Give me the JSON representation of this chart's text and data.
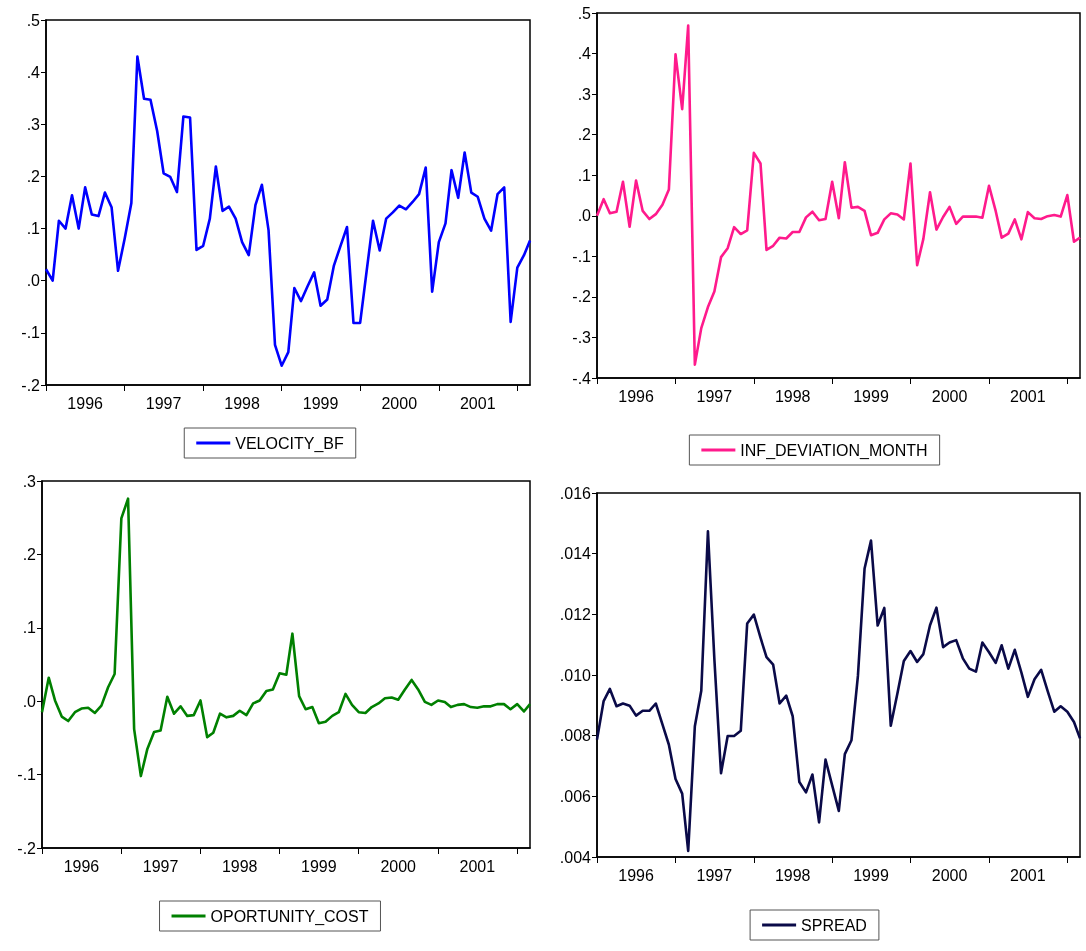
{
  "chart_data": [
    {
      "type": "line",
      "marker": "none",
      "legend": "bottom",
      "xlim": [
        "1996-01",
        "2002-03"
      ],
      "xticks": [
        {
          "value": "1996-01",
          "label": null
        },
        {
          "value": "1996-07",
          "label": "1996"
        },
        {
          "value": "1997-01",
          "label": null
        },
        {
          "value": "1997-07",
          "label": "1997"
        },
        {
          "value": "1998-01",
          "label": null
        },
        {
          "value": "1998-07",
          "label": "1998"
        },
        {
          "value": "1999-01",
          "label": null
        },
        {
          "value": "1999-07",
          "label": "1999"
        },
        {
          "value": "2000-01",
          "label": null
        },
        {
          "value": "2000-07",
          "label": "2000"
        },
        {
          "value": "2001-01",
          "label": null
        },
        {
          "value": "2001-07",
          "label": "2001"
        },
        {
          "value": "2002-01",
          "label": null
        }
      ],
      "ylim": [
        -0.2,
        0.5
      ],
      "yticks": [
        {
          "value": -0.2,
          "label": "-.2"
        },
        {
          "value": -0.1,
          "label": "-.1"
        },
        {
          "value": 0,
          "label": ".0"
        },
        {
          "value": 0.1,
          "label": ".1"
        },
        {
          "value": 0.2,
          "label": ".2"
        },
        {
          "value": 0.3,
          "label": ".3"
        },
        {
          "value": 0.4,
          "label": ".4"
        },
        {
          "value": 0.5,
          "label": ".5"
        }
      ],
      "x": [
        "1996-01",
        "1996-02",
        "1996-03",
        "1996-04",
        "1996-05",
        "1996-06",
        "1996-07",
        "1996-08",
        "1996-09",
        "1996-10",
        "1996-11",
        "1996-12",
        "1997-01",
        "1997-02",
        "1997-03",
        "1997-04",
        "1997-05",
        "1997-06",
        "1997-07",
        "1997-08",
        "1997-09",
        "1997-10",
        "1997-11",
        "1997-12",
        "1998-01",
        "1998-02",
        "1998-03",
        "1998-04",
        "1998-05",
        "1998-06",
        "1998-07",
        "1998-08",
        "1998-09",
        "1998-10",
        "1998-11",
        "1998-12",
        "1999-01",
        "1999-02",
        "1999-03",
        "1999-04",
        "1999-05",
        "1999-06",
        "1999-07",
        "1999-08",
        "1999-09",
        "1999-10",
        "1999-11",
        "1999-12",
        "2000-01",
        "2000-02",
        "2000-03",
        "2000-04",
        "2000-05",
        "2000-06",
        "2000-07",
        "2000-08",
        "2000-09",
        "2000-10",
        "2000-11",
        "2000-12",
        "2001-01",
        "2001-02",
        "2001-03",
        "2001-04",
        "2001-05",
        "2001-06",
        "2001-07",
        "2001-08",
        "2001-09",
        "2001-10",
        "2001-11",
        "2001-12",
        "2002-01",
        "2002-02",
        "2002-03"
      ],
      "series": [
        {
          "name": "VELOCITY_BF",
          "color": "#0000ff",
          "values": [
            0.022,
            0.0,
            0.115,
            0.1,
            0.164,
            0.1,
            0.179,
            0.127,
            0.124,
            0.169,
            0.141,
            0.019,
            0.081,
            0.149,
            0.43,
            0.349,
            0.347,
            0.287,
            0.206,
            0.199,
            0.17,
            0.315,
            0.313,
            0.059,
            0.067,
            0.119,
            0.219,
            0.134,
            0.142,
            0.119,
            0.074,
            0.049,
            0.145,
            0.184,
            0.097,
            -0.123,
            -0.163,
            -0.137,
            -0.014,
            -0.039,
            -0.011,
            0.016,
            -0.048,
            -0.036,
            0.029,
            0.066,
            0.103,
            -0.081,
            -0.081,
            0.021,
            0.115,
            0.058,
            0.119,
            0.131,
            0.144,
            0.137,
            0.151,
            0.166,
            0.217,
            -0.021,
            0.074,
            0.11,
            0.212,
            0.159,
            0.246,
            0.169,
            0.161,
            0.119,
            0.096,
            0.166,
            0.179,
            -0.079,
            0.025,
            0.049,
            0.077
          ]
        }
      ]
    },
    {
      "type": "line",
      "marker": "none",
      "legend": "bottom",
      "xlim": [
        "1996-01",
        "2002-03"
      ],
      "xticks": [
        {
          "value": "1996-01",
          "label": null
        },
        {
          "value": "1996-07",
          "label": "1996"
        },
        {
          "value": "1997-01",
          "label": null
        },
        {
          "value": "1997-07",
          "label": "1997"
        },
        {
          "value": "1998-01",
          "label": null
        },
        {
          "value": "1998-07",
          "label": "1998"
        },
        {
          "value": "1999-01",
          "label": null
        },
        {
          "value": "1999-07",
          "label": "1999"
        },
        {
          "value": "2000-01",
          "label": null
        },
        {
          "value": "2000-07",
          "label": "2000"
        },
        {
          "value": "2001-01",
          "label": null
        },
        {
          "value": "2001-07",
          "label": "2001"
        },
        {
          "value": "2002-01",
          "label": null
        }
      ],
      "ylim": [
        -0.4,
        0.5
      ],
      "yticks": [
        {
          "value": -0.4,
          "label": "-.4"
        },
        {
          "value": -0.3,
          "label": "-.3"
        },
        {
          "value": -0.2,
          "label": "-.2"
        },
        {
          "value": -0.1,
          "label": "-.1"
        },
        {
          "value": 0,
          "label": ".0"
        },
        {
          "value": 0.1,
          "label": ".1"
        },
        {
          "value": 0.2,
          "label": ".2"
        },
        {
          "value": 0.3,
          "label": ".3"
        },
        {
          "value": 0.4,
          "label": ".4"
        },
        {
          "value": 0.5,
          "label": ".5"
        }
      ],
      "x": [
        "1996-01",
        "1996-02",
        "1996-03",
        "1996-04",
        "1996-05",
        "1996-06",
        "1996-07",
        "1996-08",
        "1996-09",
        "1996-10",
        "1996-11",
        "1996-12",
        "1997-01",
        "1997-02",
        "1997-03",
        "1997-04",
        "1997-05",
        "1997-06",
        "1997-07",
        "1997-08",
        "1997-09",
        "1997-10",
        "1997-11",
        "1997-12",
        "1998-01",
        "1998-02",
        "1998-03",
        "1998-04",
        "1998-05",
        "1998-06",
        "1998-07",
        "1998-08",
        "1998-09",
        "1998-10",
        "1998-11",
        "1998-12",
        "1999-01",
        "1999-02",
        "1999-03",
        "1999-04",
        "1999-05",
        "1999-06",
        "1999-07",
        "1999-08",
        "1999-09",
        "1999-10",
        "1999-11",
        "1999-12",
        "2000-01",
        "2000-02",
        "2000-03",
        "2000-04",
        "2000-05",
        "2000-06",
        "2000-07",
        "2000-08",
        "2000-09",
        "2000-10",
        "2000-11",
        "2000-12",
        "2001-01",
        "2001-02",
        "2001-03",
        "2001-04",
        "2001-05",
        "2001-06",
        "2001-07",
        "2001-08",
        "2001-09",
        "2001-10",
        "2001-11",
        "2001-12",
        "2002-01",
        "2002-02",
        "2002-03"
      ],
      "series": [
        {
          "name": "INF_DEVIATION_MONTH",
          "color": "#ff1a8c",
          "values": [
            0.0,
            0.041,
            0.006,
            0.01,
            0.084,
            -0.027,
            0.087,
            0.012,
            -0.008,
            0.004,
            0.027,
            0.065,
            0.398,
            0.263,
            0.469,
            -0.367,
            -0.277,
            -0.225,
            -0.187,
            -0.102,
            -0.08,
            -0.028,
            -0.045,
            -0.036,
            0.155,
            0.129,
            -0.084,
            -0.074,
            -0.054,
            -0.056,
            -0.04,
            -0.04,
            -0.004,
            0.01,
            -0.011,
            -0.008,
            0.084,
            -0.006,
            0.132,
            0.02,
            0.022,
            0.012,
            -0.048,
            -0.042,
            -0.009,
            0.006,
            0.003,
            -0.009,
            0.129,
            -0.122,
            -0.057,
            0.058,
            -0.034,
            -0.003,
            0.022,
            -0.02,
            -0.002,
            -0.002,
            -0.002,
            -0.005,
            0.074,
            0.012,
            -0.054,
            -0.044,
            -0.009,
            -0.058,
            0.009,
            -0.006,
            -0.008,
            -0.001,
            0.002,
            -0.002,
            0.051,
            -0.064,
            -0.054
          ]
        }
      ]
    },
    {
      "type": "line",
      "marker": "none",
      "legend": "bottom",
      "xlim": [
        "1996-01",
        "2002-03"
      ],
      "xticks": [
        {
          "value": "1996-01",
          "label": null
        },
        {
          "value": "1996-07",
          "label": "1996"
        },
        {
          "value": "1997-01",
          "label": null
        },
        {
          "value": "1997-07",
          "label": "1997"
        },
        {
          "value": "1998-01",
          "label": null
        },
        {
          "value": "1998-07",
          "label": "1998"
        },
        {
          "value": "1999-01",
          "label": null
        },
        {
          "value": "1999-07",
          "label": "1999"
        },
        {
          "value": "2000-01",
          "label": null
        },
        {
          "value": "2000-07",
          "label": "2000"
        },
        {
          "value": "2001-01",
          "label": null
        },
        {
          "value": "2001-07",
          "label": "2001"
        },
        {
          "value": "2002-01",
          "label": null
        }
      ],
      "ylim": [
        -0.2,
        0.3
      ],
      "yticks": [
        {
          "value": -0.2,
          "label": "-.2"
        },
        {
          "value": -0.1,
          "label": "-.1"
        },
        {
          "value": 0,
          "label": ".0"
        },
        {
          "value": 0.1,
          "label": ".1"
        },
        {
          "value": 0.2,
          "label": ".2"
        },
        {
          "value": 0.3,
          "label": ".3"
        }
      ],
      "x": [
        "1996-01",
        "1996-02",
        "1996-03",
        "1996-04",
        "1996-05",
        "1996-06",
        "1996-07",
        "1996-08",
        "1996-09",
        "1996-10",
        "1996-11",
        "1996-12",
        "1997-01",
        "1997-02",
        "1997-03",
        "1997-04",
        "1997-05",
        "1997-06",
        "1997-07",
        "1997-08",
        "1997-09",
        "1997-10",
        "1997-11",
        "1997-12",
        "1998-01",
        "1998-02",
        "1998-03",
        "1998-04",
        "1998-05",
        "1998-06",
        "1998-07",
        "1998-08",
        "1998-09",
        "1998-10",
        "1998-11",
        "1998-12",
        "1999-01",
        "1999-02",
        "1999-03",
        "1999-04",
        "1999-05",
        "1999-06",
        "1999-07",
        "1999-08",
        "1999-09",
        "1999-10",
        "1999-11",
        "1999-12",
        "2000-01",
        "2000-02",
        "2000-03",
        "2000-04",
        "2000-05",
        "2000-06",
        "2000-07",
        "2000-08",
        "2000-09",
        "2000-10",
        "2000-11",
        "2000-12",
        "2001-01",
        "2001-02",
        "2001-03",
        "2001-04",
        "2001-05",
        "2001-06",
        "2001-07",
        "2001-08",
        "2001-09",
        "2001-10",
        "2001-11",
        "2001-12",
        "2002-01",
        "2002-02",
        "2002-03"
      ],
      "series": [
        {
          "name": "OPORTUNITY_COST",
          "color": "#008000",
          "values": [
            -0.015,
            0.032,
            0.001,
            -0.021,
            -0.027,
            -0.015,
            -0.01,
            -0.009,
            -0.016,
            -0.006,
            0.019,
            0.037,
            0.249,
            0.276,
            -0.038,
            -0.102,
            -0.065,
            -0.042,
            -0.04,
            0.006,
            -0.017,
            -0.007,
            -0.02,
            -0.019,
            0.001,
            -0.049,
            -0.043,
            -0.017,
            -0.022,
            -0.02,
            -0.013,
            -0.019,
            -0.003,
            0.001,
            0.014,
            0.016,
            0.038,
            0.036,
            0.092,
            0.007,
            -0.011,
            -0.008,
            -0.03,
            -0.028,
            -0.02,
            -0.015,
            0.01,
            -0.005,
            -0.015,
            -0.016,
            -0.008,
            -0.003,
            0.004,
            0.005,
            0.002,
            0.016,
            0.029,
            0.016,
            -0.001,
            -0.005,
            0.001,
            -0.001,
            -0.008,
            -0.005,
            -0.004,
            -0.008,
            -0.009,
            -0.007,
            -0.007,
            -0.004,
            -0.004,
            -0.011,
            -0.004,
            -0.014,
            -0.004
          ]
        }
      ]
    },
    {
      "type": "line",
      "marker": "none",
      "legend": "bottom",
      "xlim": [
        "1996-01",
        "2002-03"
      ],
      "xticks": [
        {
          "value": "1996-01",
          "label": null
        },
        {
          "value": "1996-07",
          "label": "1996"
        },
        {
          "value": "1997-01",
          "label": null
        },
        {
          "value": "1997-07",
          "label": "1997"
        },
        {
          "value": "1998-01",
          "label": null
        },
        {
          "value": "1998-07",
          "label": "1998"
        },
        {
          "value": "1999-01",
          "label": null
        },
        {
          "value": "1999-07",
          "label": "1999"
        },
        {
          "value": "2000-01",
          "label": null
        },
        {
          "value": "2000-07",
          "label": "2000"
        },
        {
          "value": "2001-01",
          "label": null
        },
        {
          "value": "2001-07",
          "label": "2001"
        },
        {
          "value": "2002-01",
          "label": null
        }
      ],
      "ylim": [
        0.004,
        0.016
      ],
      "yticks": [
        {
          "value": 0.004,
          "label": ".004"
        },
        {
          "value": 0.006,
          "label": ".006"
        },
        {
          "value": 0.008,
          "label": ".008"
        },
        {
          "value": 0.01,
          "label": ".010"
        },
        {
          "value": 0.012,
          "label": ".012"
        },
        {
          "value": 0.014,
          "label": ".014"
        },
        {
          "value": 0.016,
          "label": ".016"
        }
      ],
      "x": [
        "1996-01",
        "1996-02",
        "1996-03",
        "1996-04",
        "1996-05",
        "1996-06",
        "1996-07",
        "1996-08",
        "1996-09",
        "1996-10",
        "1996-11",
        "1996-12",
        "1997-01",
        "1997-02",
        "1997-03",
        "1997-04",
        "1997-05",
        "1997-06",
        "1997-07",
        "1997-08",
        "1997-09",
        "1997-10",
        "1997-11",
        "1997-12",
        "1998-01",
        "1998-02",
        "1998-03",
        "1998-04",
        "1998-05",
        "1998-06",
        "1998-07",
        "1998-08",
        "1998-09",
        "1998-10",
        "1998-11",
        "1998-12",
        "1999-01",
        "1999-02",
        "1999-03",
        "1999-04",
        "1999-05",
        "1999-06",
        "1999-07",
        "1999-08",
        "1999-09",
        "1999-10",
        "1999-11",
        "1999-12",
        "2000-01",
        "2000-02",
        "2000-03",
        "2000-04",
        "2000-05",
        "2000-06",
        "2000-07",
        "2000-08",
        "2000-09",
        "2000-10",
        "2000-11",
        "2000-12",
        "2001-01",
        "2001-02",
        "2001-03",
        "2001-04",
        "2001-05",
        "2001-06",
        "2001-07",
        "2001-08",
        "2001-09",
        "2001-10",
        "2001-11",
        "2001-12",
        "2002-01",
        "2002-02",
        "2002-03"
      ],
      "series": [
        {
          "name": "SPREAD",
          "color": "#0a0a48",
          "values": [
            0.00787,
            0.00914,
            0.00954,
            0.00897,
            0.00906,
            0.00899,
            0.00866,
            0.00882,
            0.00882,
            0.00906,
            0.00837,
            0.0077,
            0.00657,
            0.00609,
            0.0042,
            0.00831,
            0.00948,
            0.01474,
            0.01052,
            0.00676,
            0.00799,
            0.00799,
            0.00816,
            0.0117,
            0.01199,
            0.01123,
            0.01059,
            0.01034,
            0.00906,
            0.00932,
            0.00864,
            0.00647,
            0.00613,
            0.00672,
            0.00514,
            0.00721,
            0.00636,
            0.00552,
            0.00739,
            0.00785,
            0.00997,
            0.01351,
            0.01443,
            0.01163,
            0.01221,
            0.00833,
            0.00939,
            0.01046,
            0.01079,
            0.01043,
            0.01069,
            0.01164,
            0.01222,
            0.01092,
            0.01107,
            0.01115,
            0.01055,
            0.01021,
            0.01011,
            0.01107,
            0.01075,
            0.0104,
            0.01098,
            0.01021,
            0.01083,
            0.01008,
            0.00928,
            0.00986,
            0.01017,
            0.00948,
            0.00879,
            0.00897,
            0.00879,
            0.00845,
            0.00791
          ]
        }
      ]
    }
  ]
}
